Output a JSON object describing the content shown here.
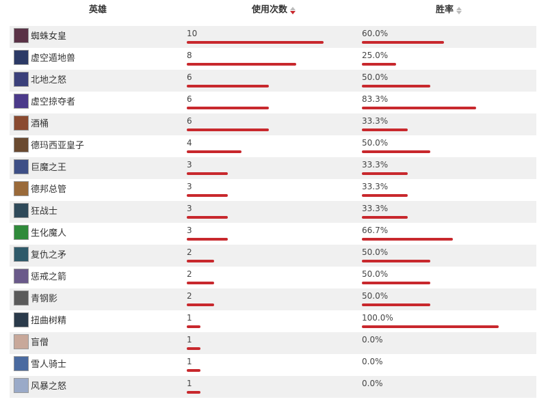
{
  "header": {
    "hero_label": "英雄",
    "usage_label": "使用次数",
    "winrate_label": "胜率"
  },
  "colors": {
    "bar": "#c8282d",
    "row_alt": "#f0f0f0",
    "sort_active": "#c8282d",
    "sort_inactive": "#bbbbbb"
  },
  "max_usage": 10,
  "rows": [
    {
      "name": "蜘蛛女皇",
      "usage": 10,
      "winrate": 60.0,
      "winrate_text": "60.0%",
      "avatar": "#5a3246"
    },
    {
      "name": "虚空遁地兽",
      "usage": 8,
      "winrate": 25.0,
      "winrate_text": "25.0%",
      "avatar": "#2c3a66"
    },
    {
      "name": "北地之怒",
      "usage": 6,
      "winrate": 50.0,
      "winrate_text": "50.0%",
      "avatar": "#3a3f7a"
    },
    {
      "name": "虚空掠夺者",
      "usage": 6,
      "winrate": 83.3,
      "winrate_text": "83.3%",
      "avatar": "#4b3a8a"
    },
    {
      "name": "酒桶",
      "usage": 6,
      "winrate": 33.3,
      "winrate_text": "33.3%",
      "avatar": "#8a4a30"
    },
    {
      "name": "德玛西亚皇子",
      "usage": 4,
      "winrate": 50.0,
      "winrate_text": "50.0%",
      "avatar": "#6a4a30"
    },
    {
      "name": "巨魔之王",
      "usage": 3,
      "winrate": 33.3,
      "winrate_text": "33.3%",
      "avatar": "#3e4f86"
    },
    {
      "name": "德邦总管",
      "usage": 3,
      "winrate": 33.3,
      "winrate_text": "33.3%",
      "avatar": "#9a6a3a"
    },
    {
      "name": "狂战士",
      "usage": 3,
      "winrate": 33.3,
      "winrate_text": "33.3%",
      "avatar": "#2f4a5a"
    },
    {
      "name": "生化魔人",
      "usage": 3,
      "winrate": 66.7,
      "winrate_text": "66.7%",
      "avatar": "#2f8a3a"
    },
    {
      "name": "复仇之矛",
      "usage": 2,
      "winrate": 50.0,
      "winrate_text": "50.0%",
      "avatar": "#2f5a6a"
    },
    {
      "name": "惩戒之箭",
      "usage": 2,
      "winrate": 50.0,
      "winrate_text": "50.0%",
      "avatar": "#6a5a8a"
    },
    {
      "name": "青钢影",
      "usage": 2,
      "winrate": 50.0,
      "winrate_text": "50.0%",
      "avatar": "#5a5a5a"
    },
    {
      "name": "扭曲树精",
      "usage": 1,
      "winrate": 100.0,
      "winrate_text": "100.0%",
      "avatar": "#2a3a4a"
    },
    {
      "name": "盲僧",
      "usage": 1,
      "winrate": 0.0,
      "winrate_text": "0.0%",
      "avatar": "#c8a89a"
    },
    {
      "name": "雪人骑士",
      "usage": 1,
      "winrate": 0.0,
      "winrate_text": "0.0%",
      "avatar": "#4a6aa0"
    },
    {
      "name": "风暴之怒",
      "usage": 1,
      "winrate": 0.0,
      "winrate_text": "0.0%",
      "avatar": "#9aaac8"
    }
  ]
}
